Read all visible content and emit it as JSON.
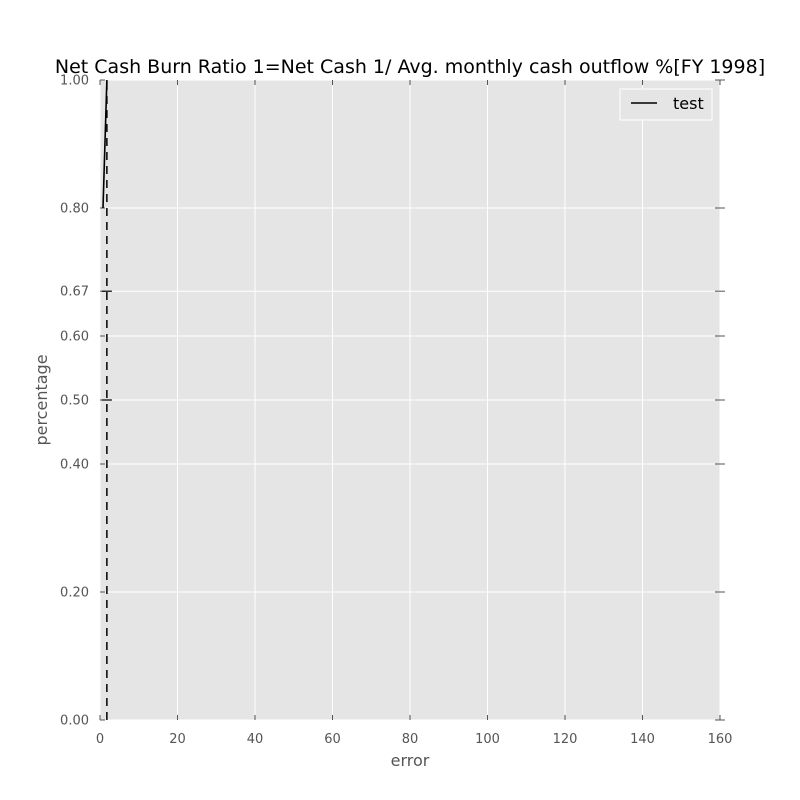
{
  "chart_data": {
    "type": "line",
    "title": "Net Cash Burn Ratio 1=Net Cash 1/ Avg. monthly cash outflow %[FY 1998]",
    "xlabel": "error",
    "ylabel": "percentage",
    "xlim": [
      0,
      160
    ],
    "ylim": [
      0,
      1
    ],
    "x_ticks": [
      0,
      20,
      40,
      60,
      80,
      100,
      120,
      140,
      160
    ],
    "x_tick_labels": [
      "0",
      "20",
      "40",
      "60",
      "80",
      "100",
      "120",
      "140",
      "160"
    ],
    "y_ticks": [
      0,
      0.2,
      0.4,
      0.5,
      0.6,
      0.67,
      0.8,
      1.0
    ],
    "y_tick_labels": [
      "0.00",
      "0.20",
      "0.40",
      "0.50",
      "0.60",
      "0.67",
      "0.80",
      "1.00"
    ],
    "grid": true,
    "legend": {
      "placement": "top-right",
      "entries": [
        "test"
      ]
    },
    "series": [
      {
        "name": "test",
        "style": "solid",
        "color": "#000000",
        "x": [
          0,
          1
        ],
        "y": [
          0.8,
          1.0
        ]
      }
    ],
    "reference_line": {
      "style": "dashed",
      "color": "#000000",
      "x": [
        1,
        1
      ],
      "y": [
        0,
        1
      ]
    },
    "markers": [
      {
        "x": 1,
        "y": 0.67
      },
      {
        "x": 1,
        "y": 0.5
      }
    ],
    "colors": {
      "plot_background": "#e5e5e5",
      "grid": "#ffffff",
      "text": "#555555"
    }
  }
}
